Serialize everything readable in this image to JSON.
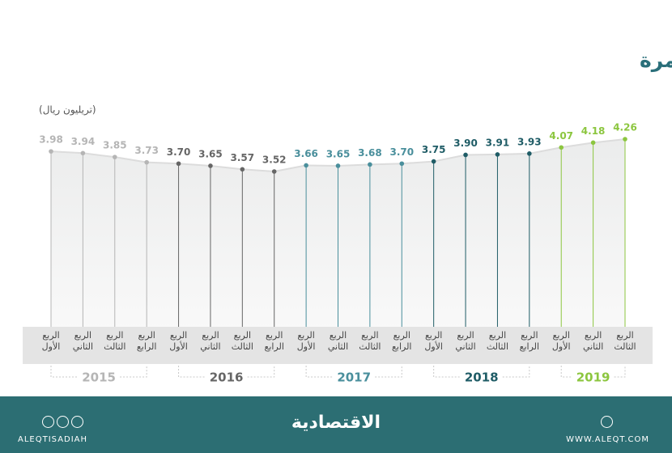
{
  "chart_data": {
    "type": "line",
    "title": "تطور الأصول السعودية المستثمرة",
    "unit": "(تريليون ريال)",
    "series": [
      {
        "name": "2015",
        "color": "#b5b5b5",
        "categories": [
          "الربع الأول",
          "الربع الثاني",
          "الربع الثالث",
          "الربع الرابع"
        ],
        "values": [
          3.98,
          3.94,
          3.85,
          3.73
        ],
        "value_labels": [
          "3.98",
          "3.94",
          "3.85",
          "3.73"
        ]
      },
      {
        "name": "2016",
        "color": "#666666",
        "categories": [
          "الربع الأول",
          "الربع الثاني",
          "الربع الثالث",
          "الربع الرابع"
        ],
        "values": [
          3.7,
          3.65,
          3.57,
          3.52
        ],
        "value_labels": [
          "3.70",
          "3.65",
          "3.57",
          "3.52"
        ]
      },
      {
        "name": "2017",
        "color": "#4a8f9c",
        "categories": [
          "الربع الأول",
          "الربع الثاني",
          "الربع الثالث",
          "الربع الرابع"
        ],
        "values": [
          3.66,
          3.65,
          3.68,
          3.7
        ],
        "value_labels": [
          "3.66",
          "3.65",
          "3.68",
          "3.70"
        ]
      },
      {
        "name": "2018",
        "color": "#1f5c66",
        "categories": [
          "الربع الأول",
          "الربع الثاني",
          "الربع الثالث",
          "الربع الرابع"
        ],
        "values": [
          3.75,
          3.9,
          3.91,
          3.93
        ],
        "value_labels": [
          "3.75",
          "3.90",
          "3.91",
          "3.93"
        ]
      },
      {
        "name": "2019",
        "color": "#8cc63f",
        "categories": [
          "الربع الأول",
          "الربع الثاني",
          "الربع الثالث"
        ],
        "values": [
          4.07,
          4.18,
          4.26
        ],
        "value_labels": [
          "4.07",
          "4.18",
          "4.26"
        ]
      }
    ]
  },
  "footer": {
    "logo": "الاقتصادية",
    "handle": "ALEQTISADIAH",
    "website": "WWW.ALEQT.COM"
  }
}
